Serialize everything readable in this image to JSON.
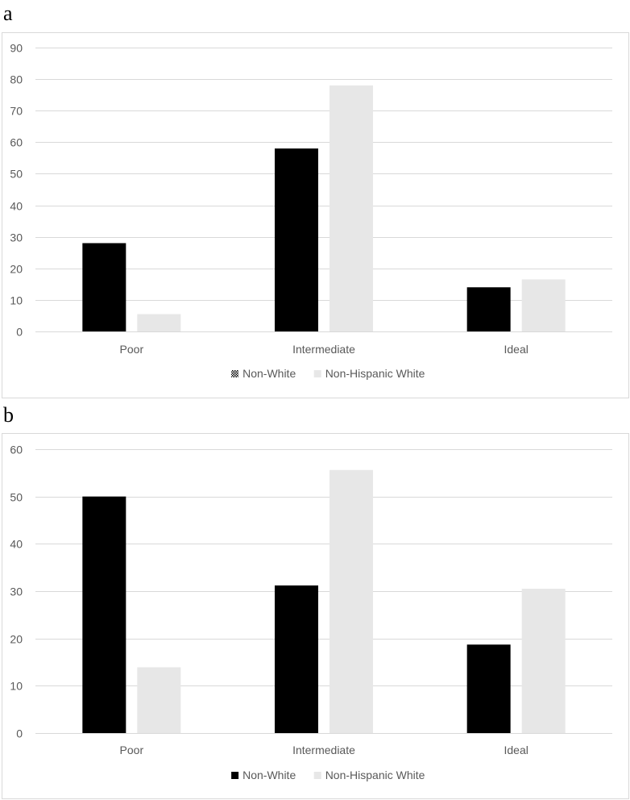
{
  "chart_data": [
    {
      "panel_label": "a",
      "type": "bar",
      "categories": [
        "Poor",
        "Intermediate",
        "Ideal"
      ],
      "series": [
        {
          "name": "Non-White",
          "values": [
            28,
            58,
            14
          ],
          "color": "#000000",
          "legend_swatch": "hatched"
        },
        {
          "name": "Non-Hispanic White",
          "values": [
            5.5,
            78,
            16.5
          ],
          "color": "#e7e7e7",
          "legend_swatch": "solid"
        }
      ],
      "ylim": [
        0,
        90
      ],
      "yticks": [
        0,
        10,
        20,
        30,
        40,
        50,
        60,
        70,
        80,
        90
      ],
      "grid": true,
      "legend_position": "bottom"
    },
    {
      "panel_label": "b",
      "type": "bar",
      "categories": [
        "Poor",
        "Intermediate",
        "Ideal"
      ],
      "series": [
        {
          "name": "Non-White",
          "values": [
            50,
            31.2,
            18.7
          ],
          "color": "#000000",
          "legend_swatch": "solid"
        },
        {
          "name": "Non-Hispanic White",
          "values": [
            13.9,
            55.6,
            30.5
          ],
          "color": "#e7e7e7",
          "legend_swatch": "solid"
        }
      ],
      "ylim": [
        0,
        60
      ],
      "yticks": [
        0,
        10,
        20,
        30,
        40,
        50,
        60
      ],
      "grid": true,
      "legend_position": "bottom"
    }
  ]
}
